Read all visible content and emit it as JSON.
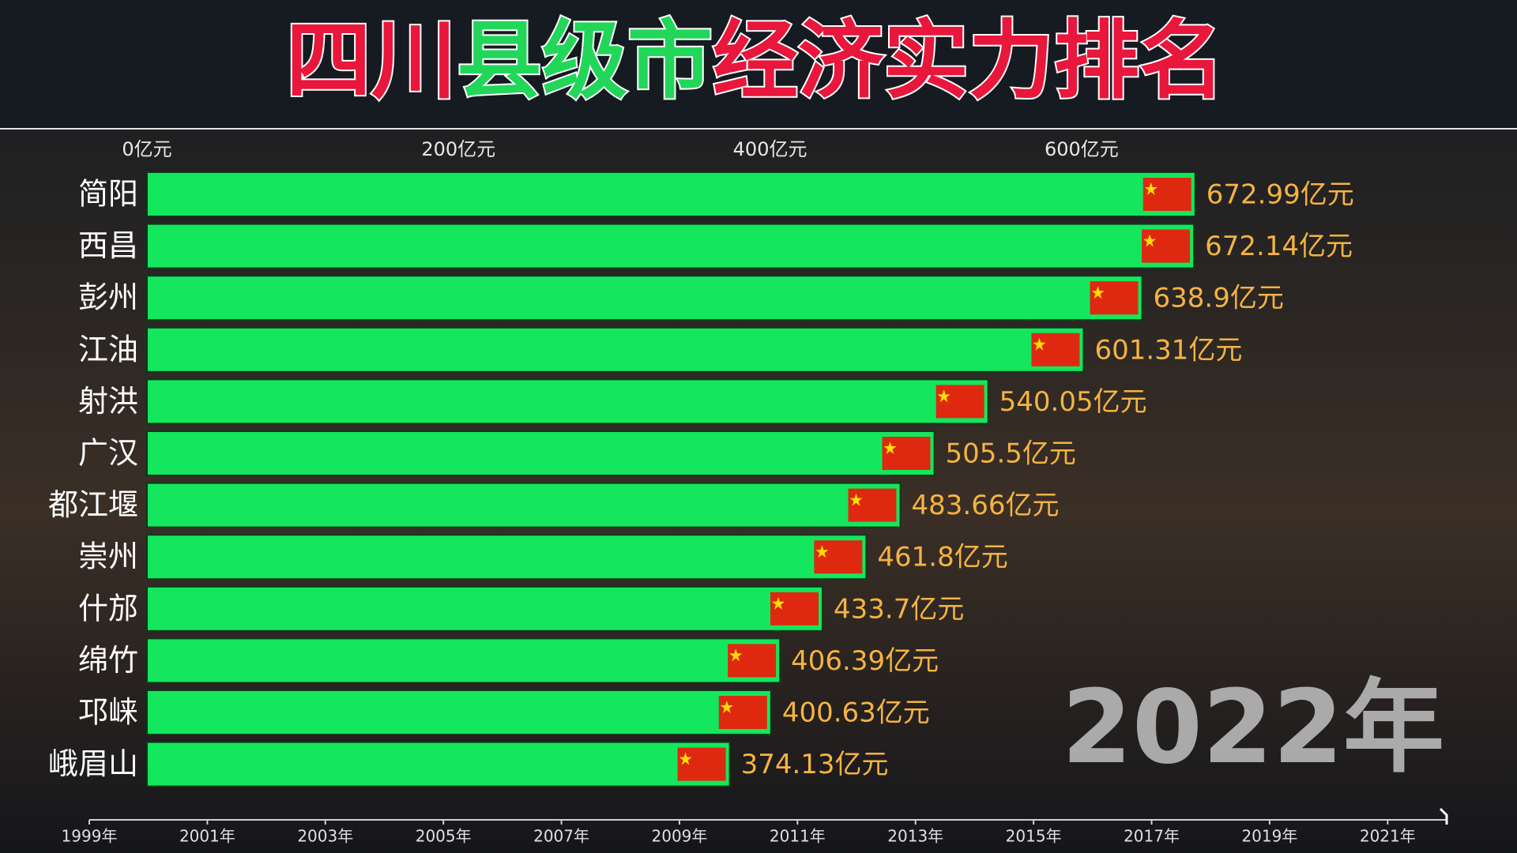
{
  "chart_data": {
    "type": "bar",
    "orientation": "horizontal",
    "title_segments": [
      {
        "text": "四川",
        "color": "#e8173b"
      },
      {
        "text": "县级市",
        "color": "#22d65a"
      },
      {
        "text": "经济实力排名",
        "color": "#e8173b"
      }
    ],
    "categories": [
      "简阳",
      "西昌",
      "彭州",
      "江油",
      "射洪",
      "广汉",
      "都江堰",
      "崇州",
      "什邡",
      "绵竹",
      "邛崃",
      "峨眉山"
    ],
    "values": [
      672.99,
      672.14,
      638.9,
      601.31,
      540.05,
      505.5,
      483.66,
      461.8,
      433.7,
      406.39,
      400.63,
      374.13
    ],
    "value_labels": [
      "672.99亿元",
      "672.14亿元",
      "638.9亿元",
      "601.31亿元",
      "540.05亿元",
      "505.5亿元",
      "483.66亿元",
      "461.8亿元",
      "433.7亿元",
      "406.39亿元",
      "400.63亿元",
      "374.13亿元"
    ],
    "color": "#14e65e",
    "xlim": [
      0,
      700
    ],
    "xticks": [
      {
        "value": 0,
        "label": "0亿元"
      },
      {
        "value": 200,
        "label": "200亿元"
      },
      {
        "value": 400,
        "label": "400亿元"
      },
      {
        "value": 600,
        "label": "600亿元"
      }
    ],
    "grid": false,
    "time_axis": {
      "lim": [
        1999,
        2022
      ],
      "ticks": [
        {
          "value": 1999,
          "label": "1999年"
        },
        {
          "value": 2001,
          "label": "2001年"
        },
        {
          "value": 2003,
          "label": "2003年"
        },
        {
          "value": 2005,
          "label": "2005年"
        },
        {
          "value": 2007,
          "label": "2007年"
        },
        {
          "value": 2009,
          "label": "2009年"
        },
        {
          "value": 2011,
          "label": "2011年"
        },
        {
          "value": 2013,
          "label": "2013年"
        },
        {
          "value": 2015,
          "label": "2015年"
        },
        {
          "value": 2017,
          "label": "2017年"
        },
        {
          "value": 2019,
          "label": "2019年"
        },
        {
          "value": 2021,
          "label": "2021年"
        }
      ],
      "current": {
        "value": 2022,
        "label": "2022年"
      }
    }
  }
}
